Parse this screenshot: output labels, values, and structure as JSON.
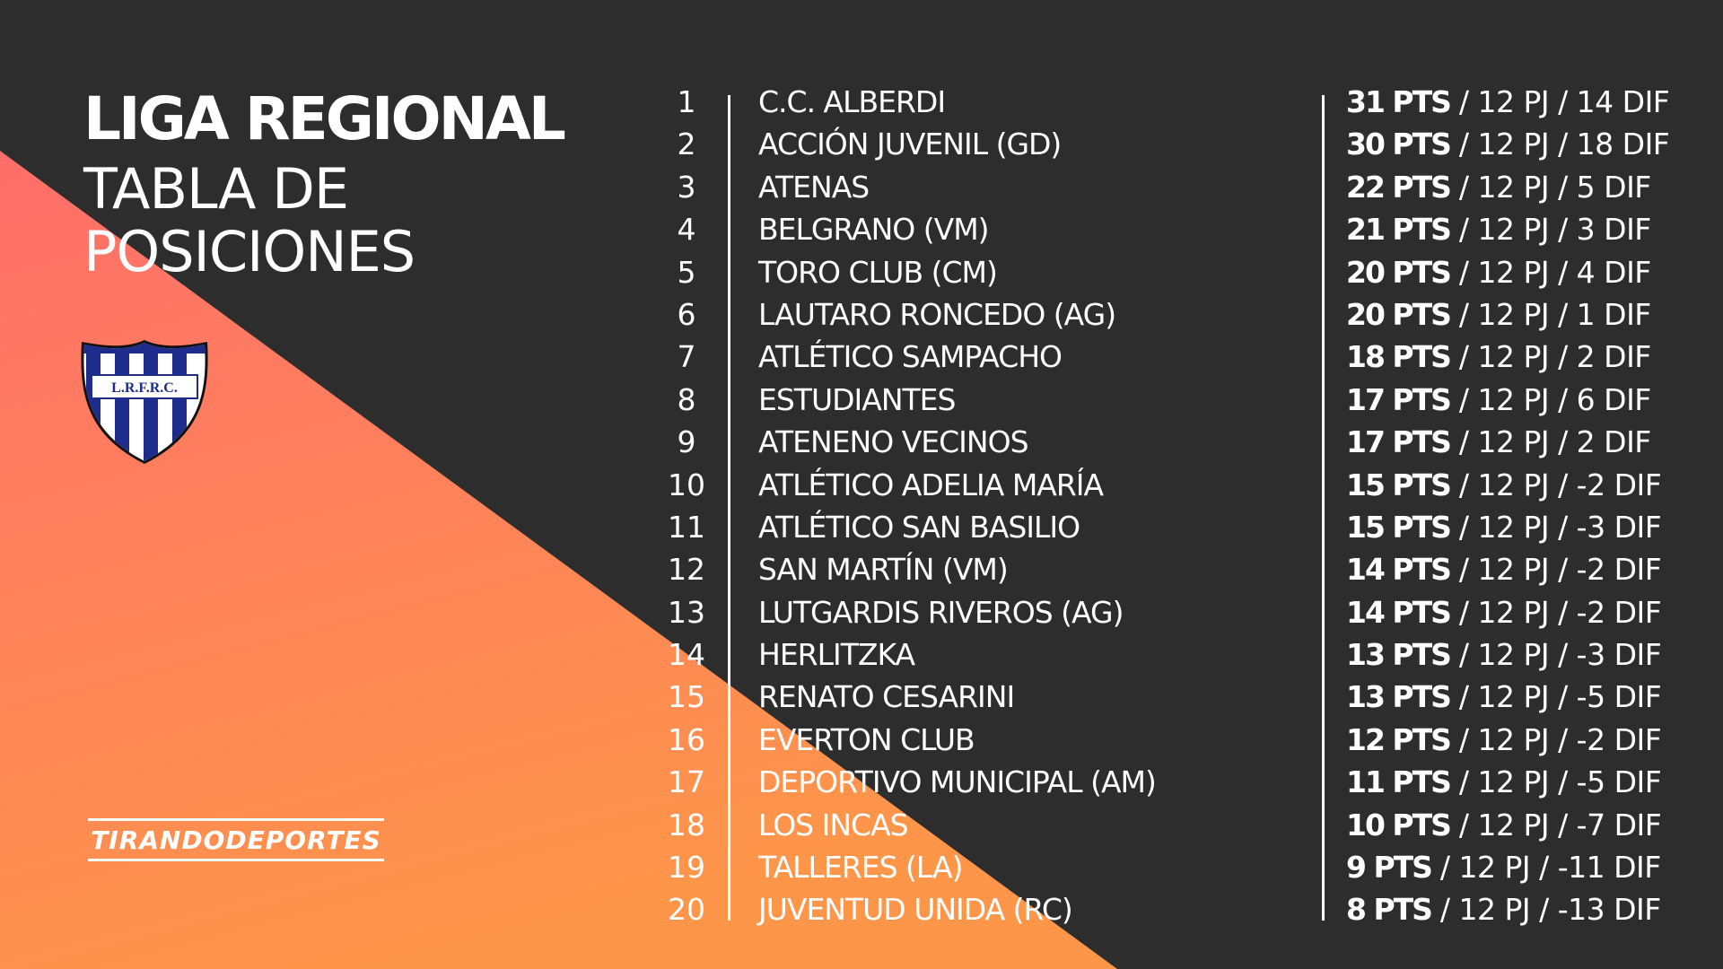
{
  "header": {
    "title": "LIGA REGIONAL",
    "subtitle": "TABLA DE\nPOSICIONES"
  },
  "logo": {
    "name": "shield-logo",
    "text": "L.R.F.R.C.",
    "colors": {
      "blue": "#1e2d8c",
      "white": "#ffffff",
      "outline": "#111111"
    }
  },
  "brand": {
    "name": "TIRANDODEPORTES"
  },
  "theme": {
    "background": "#2d2d2d",
    "gradient_top": "#fe6e6a",
    "gradient_bottom": "#fe964a"
  },
  "standings": [
    {
      "pos": "1",
      "team": "C.C. ALBERDI",
      "pts": "31 PTS",
      "rest": " / 12 PJ / 14 DIF"
    },
    {
      "pos": "2",
      "team": "ACCIÓN JUVENIL (GD)",
      "pts": "30 PTS",
      "rest": " / 12 PJ / 18 DIF"
    },
    {
      "pos": "3",
      "team": "ATENAS",
      "pts": "22 PTS",
      "rest": " / 12 PJ / 5 DIF"
    },
    {
      "pos": "4",
      "team": "BELGRANO (VM)",
      "pts": "21 PTS",
      "rest": " / 12 PJ / 3 DIF"
    },
    {
      "pos": "5",
      "team": "TORO CLUB (CM)",
      "pts": "20 PTS",
      "rest": " / 12 PJ / 4 DIF"
    },
    {
      "pos": "6",
      "team": "LAUTARO RONCEDO (AG)",
      "pts": "20 PTS",
      "rest": " / 12 PJ / 1 DIF"
    },
    {
      "pos": "7",
      "team": "ATLÉTICO SAMPACHO",
      "pts": "18 PTS",
      "rest": " / 12 PJ / 2 DIF"
    },
    {
      "pos": "8",
      "team": "ESTUDIANTES",
      "pts": "17 PTS",
      "rest": " / 12 PJ / 6 DIF"
    },
    {
      "pos": "9",
      "team": "ATENENO VECINOS",
      "pts": "17 PTS",
      "rest": " / 12 PJ / 2 DIF"
    },
    {
      "pos": "10",
      "team": "ATLÉTICO ADELIA MARÍA",
      "pts": "15 PTS",
      "rest": " / 12 PJ / -2 DIF"
    },
    {
      "pos": "11",
      "team": "ATLÉTICO SAN BASILIO",
      "pts": "15 PTS",
      "rest": " / 12 PJ / -3 DIF"
    },
    {
      "pos": "12",
      "team": "SAN MARTÍN (VM)",
      "pts": "14 PTS",
      "rest": " / 12 PJ / -2 DIF"
    },
    {
      "pos": "13",
      "team": "LUTGARDIS RIVEROS (AG)",
      "pts": "14 PTS",
      "rest": " / 12 PJ / -2 DIF"
    },
    {
      "pos": "14",
      "team": "HERLITZKA",
      "pts": "13 PTS",
      "rest": " / 12 PJ / -3 DIF"
    },
    {
      "pos": "15",
      "team": "RENATO CESARINI",
      "pts": "13 PTS",
      "rest": " / 12 PJ / -5 DIF"
    },
    {
      "pos": "16",
      "team": "EVERTON CLUB",
      "pts": "12 PTS",
      "rest": " / 12 PJ / -2 DIF"
    },
    {
      "pos": "17",
      "team": "DEPORTIVO MUNICIPAL (AM)",
      "pts": "11 PTS",
      "rest": " / 12 PJ / -5 DIF"
    },
    {
      "pos": "18",
      "team": "LOS INCAS",
      "pts": "10 PTS",
      "rest": " / 12 PJ / -7 DIF"
    },
    {
      "pos": "19",
      "team": "TALLERES (LA)",
      "pts": "9 PTS",
      "rest": " / 12 PJ / -11 DIF"
    },
    {
      "pos": "20",
      "team": "JUVENTUD UNIDA (RC)",
      "pts": "8 PTS",
      "rest": " / 12 PJ / -13 DIF"
    }
  ]
}
